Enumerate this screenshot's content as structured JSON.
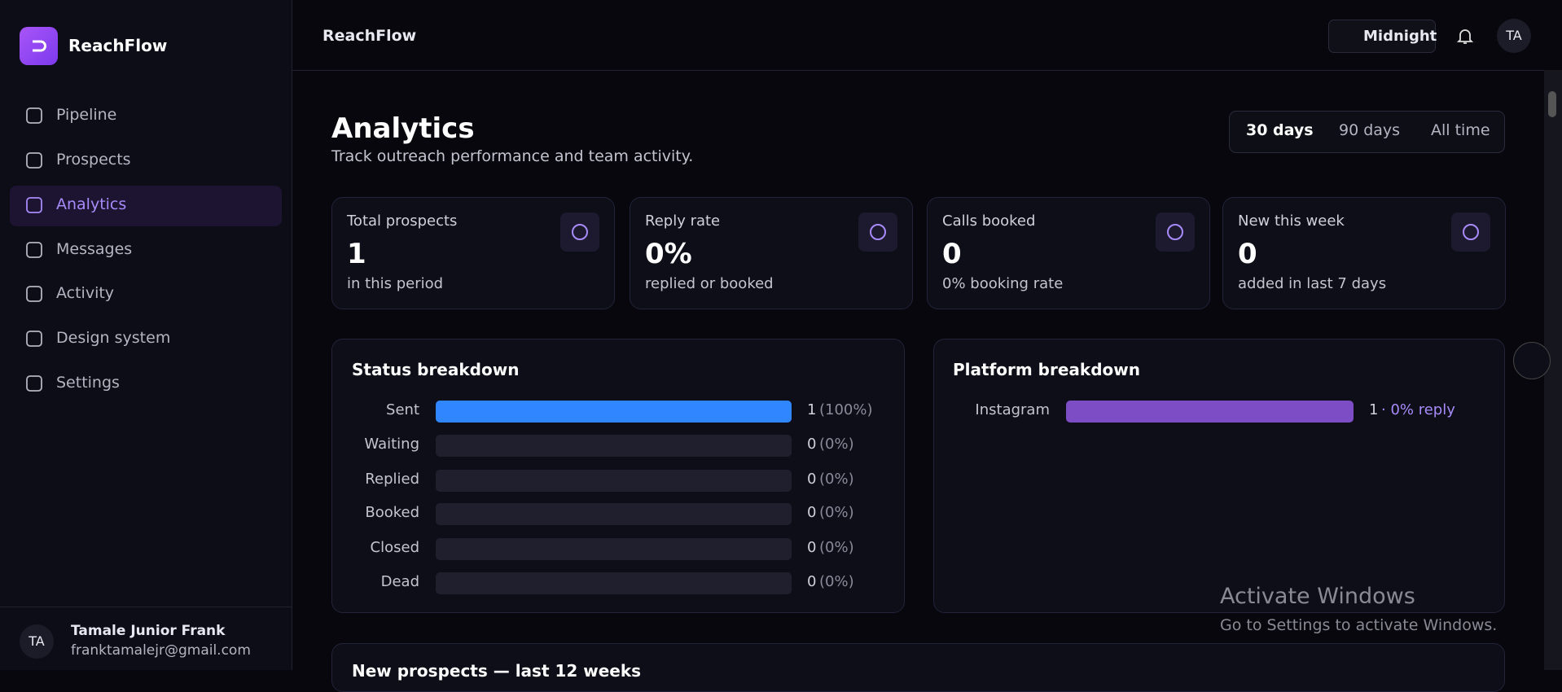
{
  "sidebar": {
    "brand": "ReachFlow",
    "nav": [
      "Pipeline",
      "Prospects",
      "Analytics",
      "Messages",
      "Activity",
      "Design system",
      "Settings"
    ],
    "active": 2,
    "user": {
      "initials": "TA",
      "name": "Tamale Junior Frank",
      "email": "franktamalejr@gmail.com"
    }
  },
  "topbar": {
    "title": "ReachFlow",
    "theme": "Midnight",
    "avatar": "TA"
  },
  "header": {
    "title": "Analytics",
    "subtitle": "Track outreach performance and team activity.",
    "ranges": [
      "30 days",
      "90 days",
      "All time"
    ],
    "active_range": 0
  },
  "stats": [
    {
      "label": "Total prospects",
      "value": "1",
      "note": "in this period"
    },
    {
      "label": "Reply rate",
      "value": "0%",
      "note": "replied or booked"
    },
    {
      "label": "Calls booked",
      "value": "0",
      "note": "0% booking rate"
    },
    {
      "label": "New this week",
      "value": "0",
      "note": "added in last 7 days"
    }
  ],
  "status_breakdown": {
    "title": "Status breakdown",
    "rows": [
      {
        "label": "Sent",
        "count": 1,
        "percent": {
          "value": 100,
          "label": "(100%)"
        }
      },
      {
        "label": "Waiting",
        "count": 0,
        "percent": {
          "value": 0,
          "label": "(0%)"
        }
      },
      {
        "label": "Replied",
        "count": 0,
        "percent": {
          "value": 0,
          "label": "(0%)"
        }
      },
      {
        "label": "Booked",
        "count": 0,
        "percent": {
          "value": 0,
          "label": "(0%)"
        }
      },
      {
        "label": "Closed",
        "count": 0,
        "percent": {
          "value": 0,
          "label": "(0%)"
        }
      },
      {
        "label": "Dead",
        "count": 0,
        "percent": {
          "value": 0,
          "label": "(0%)"
        }
      }
    ]
  },
  "platform_breakdown": {
    "title": "Platform breakdown",
    "rows": [
      {
        "label": "Instagram",
        "count": 1,
        "reply": "· 0% reply"
      }
    ]
  },
  "weekly": {
    "title": "New prospects — last 12 weeks"
  },
  "watermark": {
    "title": "Activate Windows",
    "text": "Go to Settings to activate Windows."
  }
}
